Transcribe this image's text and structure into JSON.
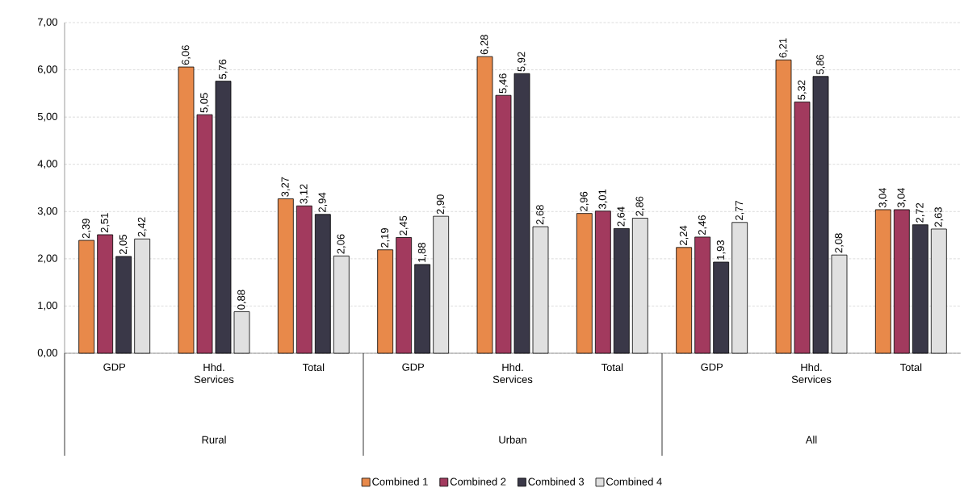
{
  "chart_data": {
    "type": "bar",
    "categories": [
      "GDP",
      "Hhd. Services",
      "Total",
      "GDP",
      "Hhd. Services",
      "Total",
      "GDP",
      "Hhd. Services",
      "Total"
    ],
    "series": [
      {
        "name": "Combined 1",
        "color": "#e8894a",
        "values": [
          2.39,
          6.06,
          3.27,
          2.19,
          6.28,
          2.96,
          2.24,
          6.21,
          3.04
        ],
        "value_labels": [
          "2,39",
          "6,06",
          "3,27",
          "2,19",
          "6,28",
          "2,96",
          "2,24",
          "6,21",
          "3,04"
        ]
      },
      {
        "name": "Combined 2",
        "color": "#a23a5e",
        "values": [
          2.51,
          5.05,
          3.12,
          2.45,
          5.46,
          3.01,
          2.46,
          5.32,
          3.04
        ],
        "value_labels": [
          "2,51",
          "5,05",
          "3,12",
          "2,45",
          "5,46",
          "3,01",
          "2,46",
          "5,32",
          "3,04"
        ]
      },
      {
        "name": "Combined 3",
        "color": "#3a3848",
        "values": [
          2.05,
          5.76,
          2.94,
          1.88,
          5.92,
          2.64,
          1.93,
          5.86,
          2.72
        ],
        "value_labels": [
          "2,05",
          "5,76",
          "2,94",
          "1,88",
          "5,92",
          "2,64",
          "1,93",
          "5,86",
          "2,72"
        ]
      },
      {
        "name": "Combined 4",
        "color": "#e0e0e0",
        "values": [
          2.42,
          0.88,
          2.06,
          2.9,
          2.68,
          2.86,
          2.77,
          2.08,
          2.63
        ],
        "value_labels": [
          "2,42",
          "0,88",
          "2,06",
          "2,90",
          "2,68",
          "2,86",
          "2,77",
          "2,08",
          "2,63"
        ]
      }
    ],
    "annotations": [
      "Rural",
      "Urban",
      "All"
    ],
    "ylim": [
      0,
      7
    ],
    "yticks": [
      {
        "value": 0,
        "label": "0,00"
      },
      {
        "value": 1,
        "label": "1,00"
      },
      {
        "value": 2,
        "label": "2,00"
      },
      {
        "value": 3,
        "label": "3,00"
      },
      {
        "value": 4,
        "label": "4,00"
      },
      {
        "value": 5,
        "label": "5,00"
      },
      {
        "value": 6,
        "label": "6,00"
      },
      {
        "value": 7,
        "label": "7,00"
      }
    ],
    "grid": "y",
    "legend": "bottom"
  }
}
